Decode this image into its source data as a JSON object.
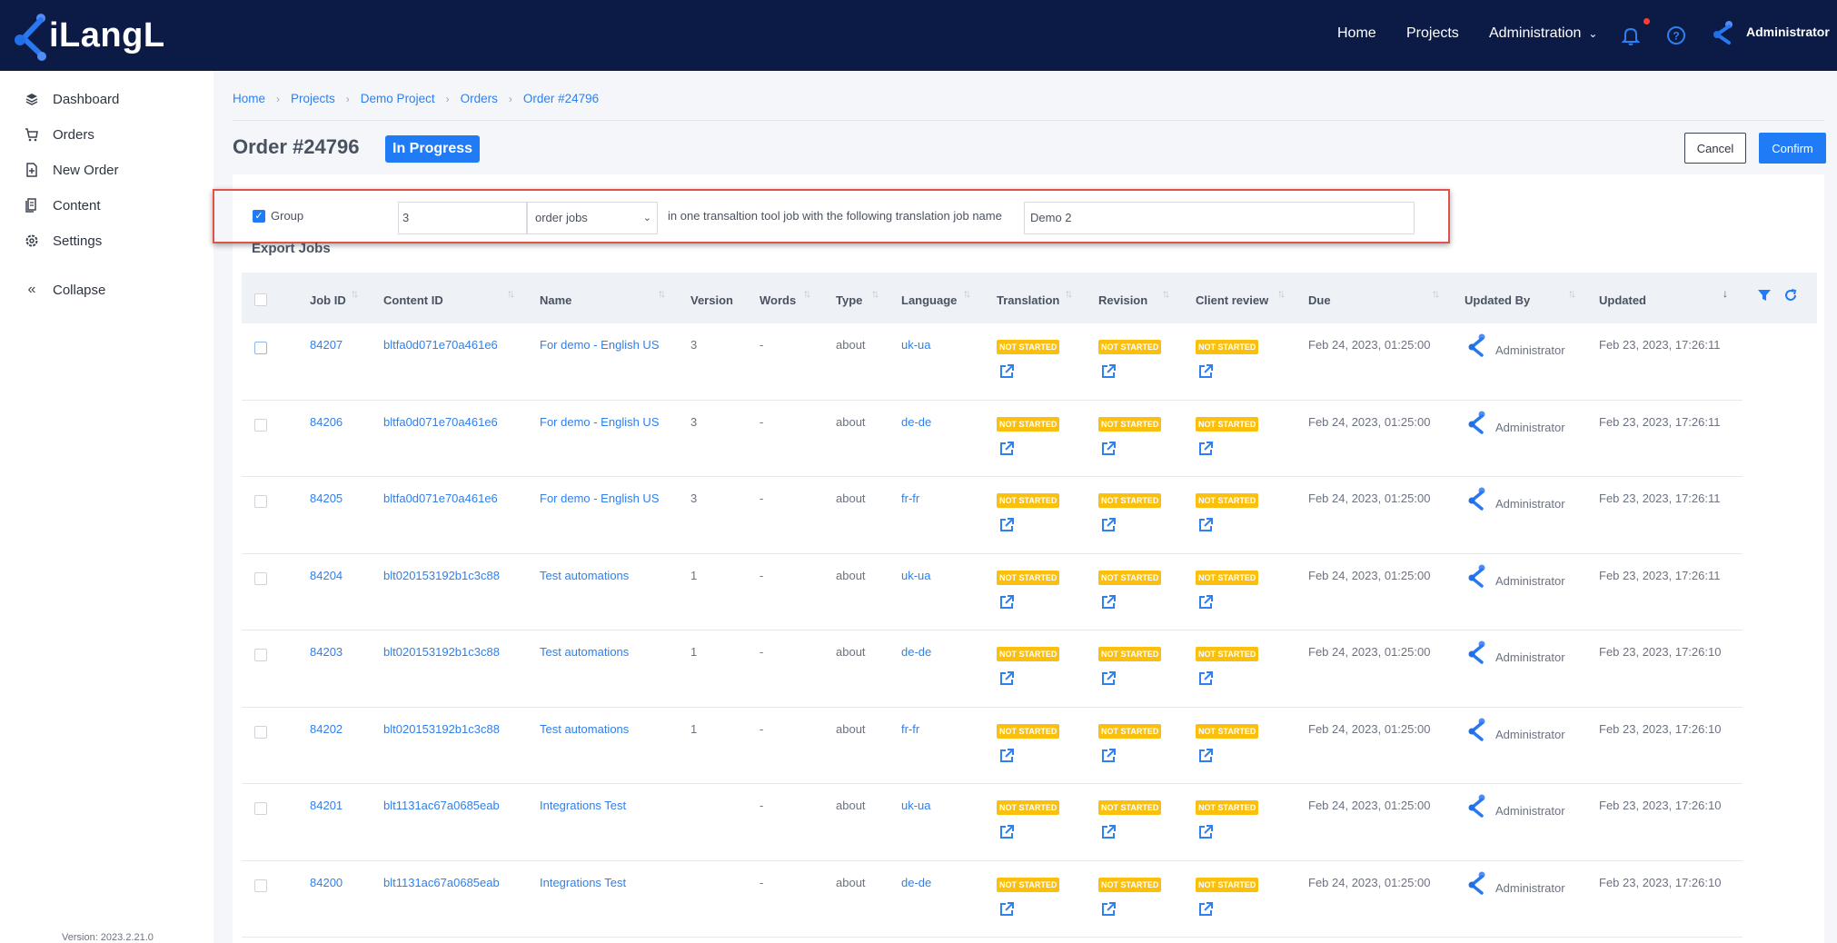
{
  "app": {
    "name": "iLangL"
  },
  "topnav": {
    "home": "Home",
    "projects": "Projects",
    "administration": "Administration",
    "user": "Administrator"
  },
  "sidebar": {
    "items": [
      {
        "label": "Dashboard",
        "icon": "layers-icon"
      },
      {
        "label": "Orders",
        "icon": "cart-icon"
      },
      {
        "label": "New Order",
        "icon": "new-doc-icon"
      },
      {
        "label": "Content",
        "icon": "content-icon"
      },
      {
        "label": "Settings",
        "icon": "gear-icon"
      },
      {
        "label": "Collapse",
        "icon": "double-chevron-left-icon"
      }
    ],
    "version": "Version: 2023.2.21.0"
  },
  "breadcrumb": [
    "Home",
    "Projects",
    "Demo Project",
    "Orders",
    "Order #24796"
  ],
  "page": {
    "title": "Order #24796",
    "status": "In Progress",
    "cancel": "Cancel",
    "confirm": "Confirm"
  },
  "group": {
    "checked": true,
    "label": "Group",
    "count": "3",
    "unit": "order jobs",
    "text": "in one transaltion tool job with the following translation job name",
    "job_name": "Demo 2"
  },
  "export": {
    "title": "Export Jobs",
    "columns": [
      "Job ID",
      "Content ID",
      "Name",
      "Version",
      "Words",
      "Type",
      "Language",
      "Translation",
      "Revision",
      "Client review",
      "Due",
      "Updated By",
      "Updated"
    ],
    "status_label": "NOT STARTED",
    "rows": [
      {
        "job_id": "84207",
        "content_id": "bltfa0d071e70a461e6",
        "name": "For demo - English US",
        "version": "3",
        "words": "-",
        "type": "about",
        "language": "uk-ua",
        "due": "Feb 24, 2023, 01:25:00",
        "updated_by": "Administrator",
        "updated": "Feb 23, 2023, 17:26:11"
      },
      {
        "job_id": "84206",
        "content_id": "bltfa0d071e70a461e6",
        "name": "For demo - English US",
        "version": "3",
        "words": "-",
        "type": "about",
        "language": "de-de",
        "due": "Feb 24, 2023, 01:25:00",
        "updated_by": "Administrator",
        "updated": "Feb 23, 2023, 17:26:11"
      },
      {
        "job_id": "84205",
        "content_id": "bltfa0d071e70a461e6",
        "name": "For demo - English US",
        "version": "3",
        "words": "-",
        "type": "about",
        "language": "fr-fr",
        "due": "Feb 24, 2023, 01:25:00",
        "updated_by": "Administrator",
        "updated": "Feb 23, 2023, 17:26:11"
      },
      {
        "job_id": "84204",
        "content_id": "blt020153192b1c3c88",
        "name": "Test automations",
        "version": "1",
        "words": "-",
        "type": "about",
        "language": "uk-ua",
        "due": "Feb 24, 2023, 01:25:00",
        "updated_by": "Administrator",
        "updated": "Feb 23, 2023, 17:26:11"
      },
      {
        "job_id": "84203",
        "content_id": "blt020153192b1c3c88",
        "name": "Test automations",
        "version": "1",
        "words": "-",
        "type": "about",
        "language": "de-de",
        "due": "Feb 24, 2023, 01:25:00",
        "updated_by": "Administrator",
        "updated": "Feb 23, 2023, 17:26:10"
      },
      {
        "job_id": "84202",
        "content_id": "blt020153192b1c3c88",
        "name": "Test automations",
        "version": "1",
        "words": "-",
        "type": "about",
        "language": "fr-fr",
        "due": "Feb 24, 2023, 01:25:00",
        "updated_by": "Administrator",
        "updated": "Feb 23, 2023, 17:26:10"
      },
      {
        "job_id": "84201",
        "content_id": "blt1131ac67a0685eab",
        "name": "Integrations Test",
        "version": "",
        "words": "-",
        "type": "about",
        "language": "uk-ua",
        "due": "Feb 24, 2023, 01:25:00",
        "updated_by": "Administrator",
        "updated": "Feb 23, 2023, 17:26:10"
      },
      {
        "job_id": "84200",
        "content_id": "blt1131ac67a0685eab",
        "name": "Integrations Test",
        "version": "",
        "words": "-",
        "type": "about",
        "language": "de-de",
        "due": "Feb 24, 2023, 01:25:00",
        "updated_by": "Administrator",
        "updated": "Feb 23, 2023, 17:26:10"
      }
    ]
  },
  "colors": {
    "navy": "#0c1b45",
    "accent": "#1f7bf6",
    "link": "#2f80ed",
    "badge": "#fbbf0e",
    "highlight": "#e0524a"
  }
}
